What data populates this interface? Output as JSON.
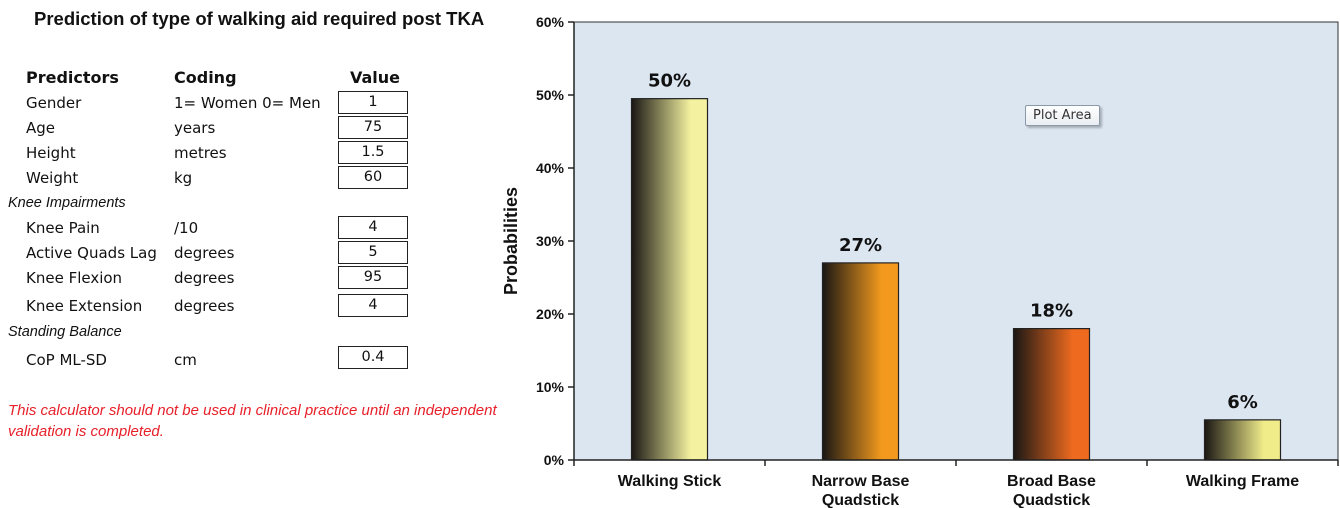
{
  "calculator": {
    "title": "Prediction of type of walking aid required post TKA",
    "headers": {
      "predictors": "Predictors",
      "coding": "Coding",
      "value": "Value"
    },
    "rows": [
      {
        "label": "Gender",
        "coding": "1= Women 0= Men",
        "value": "1"
      },
      {
        "label": "Age",
        "coding": "years",
        "value": "75"
      },
      {
        "label": "Height",
        "coding": "metres",
        "value": "1.5"
      },
      {
        "label": "Weight",
        "coding": "kg",
        "value": "60"
      },
      {
        "label": "Knee Pain",
        "coding": "/10",
        "value": "4"
      },
      {
        "label": "Active Quads Lag",
        "coding": "degrees",
        "value": "5"
      },
      {
        "label": "Knee Flexion",
        "coding": "degrees",
        "value": "95"
      },
      {
        "label": "Knee Extension",
        "coding": "degrees",
        "value": "4"
      },
      {
        "label": "CoP ML-SD",
        "coding": "cm",
        "value": "0.4"
      }
    ],
    "sections": {
      "knee_impairments": "Knee Impairments",
      "standing_balance": "Standing Balance"
    },
    "warning": "This calculator should not be used in clinical practice until an independent validation is completed."
  },
  "tooltip": "Plot Area",
  "chart_data": {
    "type": "bar",
    "title": "",
    "xlabel": "",
    "ylabel": "Probabilities",
    "categories": [
      [
        "Walking Stick"
      ],
      [
        "Narrow Base",
        "Quadstick"
      ],
      [
        "Broad Base",
        "Quadstick"
      ],
      [
        "Walking Frame"
      ]
    ],
    "values": [
      0.495,
      0.27,
      0.18,
      0.055
    ],
    "data_labels": [
      "50%",
      "27%",
      "18%",
      "6%"
    ],
    "yticks": [
      "0%",
      "10%",
      "20%",
      "30%",
      "40%",
      "50%",
      "60%"
    ],
    "ylim": [
      0,
      0.6
    ],
    "grid": false,
    "legend": "none",
    "colors": {
      "plot_bg": "#dce6f1",
      "bar_dark": "#1a1714",
      "bar_ends": [
        "#f4f2a0",
        "#f39a1e",
        "#ee6a1f",
        "#f0ec8a"
      ]
    }
  }
}
